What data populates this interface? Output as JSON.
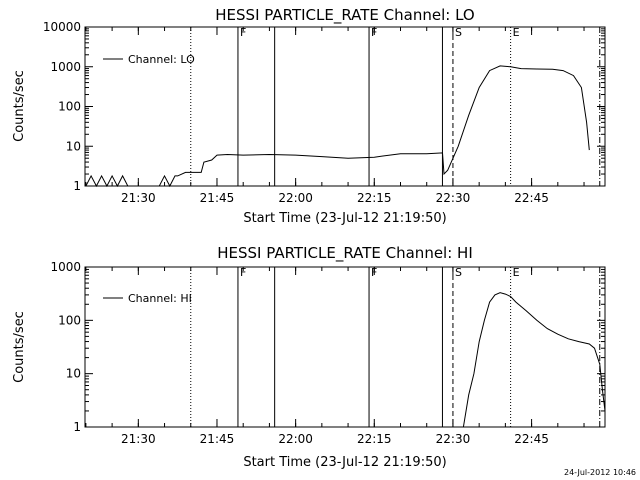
{
  "chart_data": [
    {
      "type": "line",
      "title": "HESSI PARTICLE_RATE Channel: LO",
      "xlabel": "Start Time (23-Jul-12 21:19:50)",
      "ylabel": "Counts/sec",
      "y_scale": "log",
      "ylim": [
        1,
        10000
      ],
      "xlim_minutes": [
        21.19,
        22.95
      ],
      "x_ticks": [
        "21:30",
        "21:45",
        "22:00",
        "22:15",
        "22:30",
        "22:45"
      ],
      "y_ticks": [
        "1",
        "10",
        "100",
        "1000",
        "10000"
      ],
      "legend": {
        "position": "top-left",
        "entries": [
          "Channel: LO"
        ]
      },
      "series": [
        {
          "name": "Channel: LO",
          "points": [
            [
              "21:20",
              1
            ],
            [
              "21:21",
              1.8
            ],
            [
              "21:22",
              1
            ],
            [
              "21:23",
              1.8
            ],
            [
              "21:24",
              1
            ],
            [
              "21:25",
              1.8
            ],
            [
              "21:26",
              1
            ],
            [
              "21:27",
              1.8
            ],
            [
              "21:28",
              1
            ],
            [
              "21:30",
              1
            ],
            [
              "21:34",
              1
            ],
            [
              "21:35",
              1.8
            ],
            [
              "21:36",
              1
            ],
            [
              "21:37",
              1.8
            ],
            [
              "21:37.5",
              1.8
            ],
            [
              "21:39",
              2.2
            ],
            [
              "21:42",
              2.2
            ],
            [
              "21:42.5",
              4.0
            ],
            [
              "21:44",
              4.5
            ],
            [
              "21:45",
              6.0
            ],
            [
              "21:47",
              6.2
            ],
            [
              "21:50",
              6.0
            ],
            [
              "21:55",
              6.2
            ],
            [
              "22:00",
              6.0
            ],
            [
              "22:05",
              5.5
            ],
            [
              "22:10",
              5.0
            ],
            [
              "22:15",
              5.3
            ],
            [
              "22:20",
              6.5
            ],
            [
              "22:25",
              6.5
            ],
            [
              "22:28",
              6.8
            ],
            [
              "22:28.3",
              2.0
            ],
            [
              "22:29",
              2.5
            ],
            [
              "22:31",
              10
            ],
            [
              "22:33",
              60
            ],
            [
              "22:35",
              300
            ],
            [
              "22:37",
              800
            ],
            [
              "22:39",
              1050
            ],
            [
              "22:41",
              1000
            ],
            [
              "22:43",
              900
            ],
            [
              "22:46",
              880
            ],
            [
              "22:49",
              870
            ],
            [
              "22:51",
              800
            ],
            [
              "22:53",
              600
            ],
            [
              "22:54.5",
              300
            ],
            [
              "22:55.5",
              40
            ],
            [
              "22:56",
              8
            ]
          ]
        }
      ],
      "markers": [
        {
          "time": "21:40",
          "style": "dotted",
          "label": ""
        },
        {
          "time": "21:49",
          "style": "solid",
          "label": "F"
        },
        {
          "time": "21:56",
          "style": "solid",
          "label": ""
        },
        {
          "time": "22:14",
          "style": "solid",
          "label": "F"
        },
        {
          "time": "22:28",
          "style": "solid",
          "label": ""
        },
        {
          "time": "22:30",
          "style": "dashed",
          "label": "S"
        },
        {
          "time": "22:41",
          "style": "dotted",
          "label": "E"
        },
        {
          "time": "22:58",
          "style": "dashdot",
          "label": ""
        }
      ]
    },
    {
      "type": "line",
      "title": "HESSI PARTICLE_RATE Channel: HI",
      "xlabel": "Start Time (23-Jul-12 21:19:50)",
      "ylabel": "Counts/sec",
      "y_scale": "log",
      "ylim": [
        1,
        1000
      ],
      "x_ticks": [
        "21:30",
        "21:45",
        "22:00",
        "22:15",
        "22:30",
        "22:45"
      ],
      "y_ticks": [
        "1",
        "10",
        "100",
        "1000"
      ],
      "legend": {
        "position": "top-left",
        "entries": [
          "Channel: HI"
        ]
      },
      "series": [
        {
          "name": "Channel: HI",
          "points": [
            [
              "22:32",
              1
            ],
            [
              "22:33",
              4
            ],
            [
              "22:34",
              10
            ],
            [
              "22:35",
              40
            ],
            [
              "22:36",
              100
            ],
            [
              "22:37",
              220
            ],
            [
              "22:38",
              300
            ],
            [
              "22:39",
              330
            ],
            [
              "22:40",
              310
            ],
            [
              "22:41",
              280
            ],
            [
              "22:42",
              220
            ],
            [
              "22:44",
              150
            ],
            [
              "22:46",
              100
            ],
            [
              "22:48",
              70
            ],
            [
              "22:50",
              55
            ],
            [
              "22:52",
              45
            ],
            [
              "22:54",
              40
            ],
            [
              "22:56",
              36
            ],
            [
              "22:57",
              30
            ],
            [
              "22:58",
              15
            ],
            [
              "22:58.5",
              5
            ],
            [
              "22:59",
              2
            ]
          ]
        }
      ],
      "markers": [
        {
          "time": "21:40",
          "style": "dotted",
          "label": ""
        },
        {
          "time": "21:49",
          "style": "solid",
          "label": "F"
        },
        {
          "time": "21:56",
          "style": "solid",
          "label": ""
        },
        {
          "time": "22:14",
          "style": "solid",
          "label": "F"
        },
        {
          "time": "22:28",
          "style": "solid",
          "label": ""
        },
        {
          "time": "22:30",
          "style": "dashed",
          "label": "S"
        },
        {
          "time": "22:41",
          "style": "dotted",
          "label": "E"
        },
        {
          "time": "22:58",
          "style": "dashdot",
          "label": ""
        }
      ]
    }
  ],
  "timestamp": "24-Jul-2012 10:46"
}
